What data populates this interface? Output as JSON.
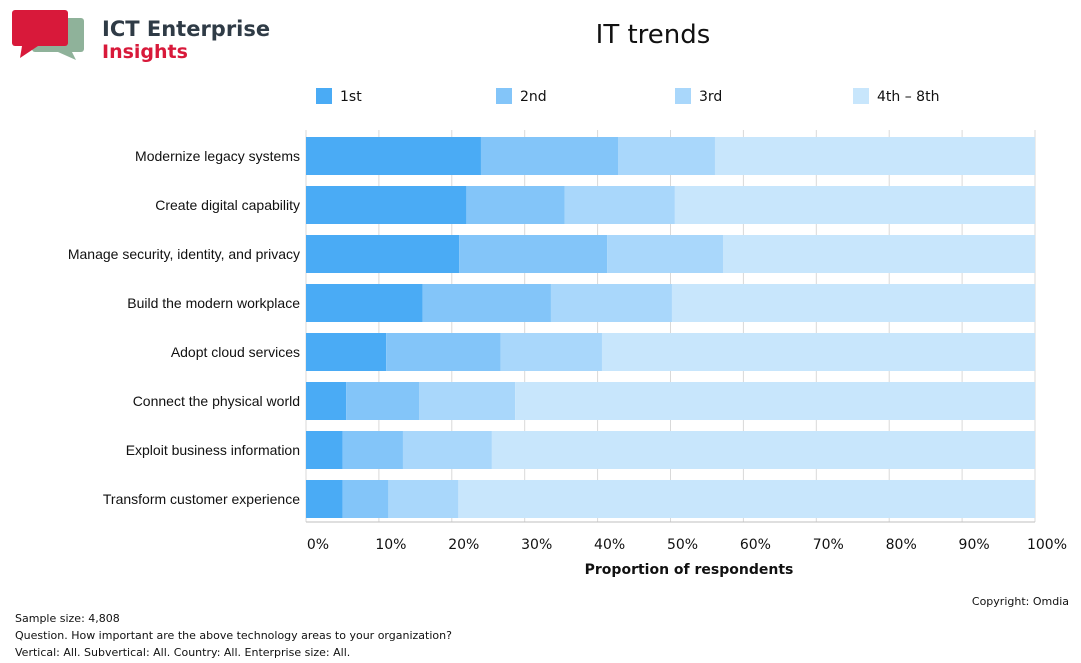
{
  "brand": {
    "line1": "ICT Enterprise",
    "line2": "Insights"
  },
  "chart_data": {
    "type": "bar",
    "orientation": "horizontal",
    "stacked": true,
    "title": "IT trends",
    "xlabel": "Proportion of respondents",
    "ylabel": "",
    "xlim": [
      0,
      100
    ],
    "x_ticks": [
      "0%",
      "10%",
      "20%",
      "30%",
      "40%",
      "50%",
      "60%",
      "70%",
      "80%",
      "90%",
      "100%"
    ],
    "legend_position": "top",
    "grid": "vertical",
    "categories": [
      "Modernize legacy systems",
      "Create digital capability",
      "Manage security, identity, and privacy",
      "Build the modern workplace",
      "Adopt cloud services",
      "Connect the physical world",
      "Exploit business information",
      "Transform customer experience"
    ],
    "series": [
      {
        "name": "1st",
        "color": "#4aabf5",
        "values": [
          24.0,
          22.0,
          21.0,
          16.0,
          11.0,
          5.5,
          5.0,
          5.0
        ]
      },
      {
        "name": "2nd",
        "color": "#83c5f9",
        "values": [
          18.8,
          13.5,
          20.3,
          17.6,
          15.7,
          10.0,
          8.3,
          6.3
        ]
      },
      {
        "name": "3rd",
        "color": "#a9d7fb",
        "values": [
          13.3,
          15.1,
          15.9,
          16.6,
          13.9,
          13.2,
          12.2,
          9.6
        ]
      },
      {
        "name": "4th – 8th",
        "color": "#c8e6fc",
        "values": [
          43.9,
          49.4,
          42.8,
          49.8,
          59.4,
          71.3,
          74.5,
          79.1
        ]
      }
    ]
  },
  "footer": {
    "sample_size": "Sample size: 4,808",
    "question": "Question. How important are the above technology areas to your organization?",
    "filters": "Vertical: All.  Subvertical: All.  Country: All.  Enterprise size: All.",
    "copyright": "Copyright: Omdia"
  }
}
